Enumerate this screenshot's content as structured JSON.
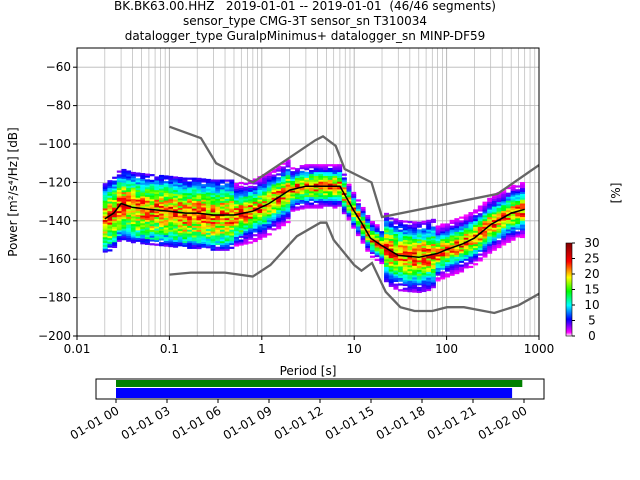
{
  "title_lines": [
    "BK.BK63.00.HHZ   2019-01-01 -- 2019-01-01  (46/46 segments)",
    "sensor_type CMG-3T sensor_sn T310034",
    "datalogger_type GuralpMinimus+ datalogger_sn MINP-DF59"
  ],
  "chart_data": [
    {
      "type": "heatmap",
      "subtype": "probabilistic-power-spectral-density",
      "xlabel": "Period [s]",
      "ylabel": "Power [m²/s⁴/Hz] [dB]",
      "xscale": "log",
      "xlim": [
        0.01,
        1000
      ],
      "ylim": [
        -200,
        -50
      ],
      "x_ticks": [
        0.01,
        0.1,
        1,
        10,
        100,
        1000
      ],
      "x_tick_labels": [
        "0.01",
        "0.1",
        "1",
        "10",
        "100",
        "1000"
      ],
      "y_ticks": [
        -200,
        -180,
        -160,
        -140,
        -120,
        -100,
        -80,
        -60
      ],
      "grid": true,
      "mode_curve": {
        "name": "mode",
        "x": [
          0.02,
          0.025,
          0.03,
          0.04,
          0.06,
          0.1,
          0.15,
          0.2,
          0.3,
          0.5,
          0.8,
          1.2,
          2,
          3,
          5,
          7,
          10,
          12,
          15,
          20,
          30,
          50,
          80,
          100,
          150,
          200,
          300,
          500,
          700
        ],
        "y": [
          -139,
          -136,
          -131,
          -133,
          -134,
          -135,
          -136,
          -136,
          -137,
          -137,
          -135,
          -131,
          -124,
          -122,
          -122,
          -122,
          -135,
          -141,
          -149,
          -153,
          -158,
          -159,
          -157,
          -155,
          -152,
          -149,
          -142,
          -136,
          -134
        ]
      },
      "noise_models": [
        {
          "name": "NHNM",
          "x": [
            0.1,
            0.22,
            0.32,
            0.8,
            3.8,
            4.6,
            6.3,
            7.9,
            15.4,
            20,
            354.8,
            1000
          ],
          "y": [
            -91,
            -97,
            -110,
            -120,
            -98,
            -96,
            -101,
            -113,
            -120,
            -138,
            -126,
            -111
          ]
        },
        {
          "name": "NLNM",
          "x": [
            0.1,
            0.17,
            0.4,
            0.8,
            1.24,
            2.4,
            4.3,
            5,
            6,
            10,
            12,
            15.6,
            21.9,
            31.6,
            45,
            70,
            101,
            154,
            328,
            600,
            1000
          ],
          "y": [
            -168,
            -167,
            -167,
            -169,
            -163,
            -148,
            -141,
            -141,
            -150,
            -163,
            -166,
            -162,
            -177,
            -185,
            -187,
            -187,
            -185,
            -185,
            -188,
            -184,
            -178
          ]
        }
      ],
      "colorbar": {
        "label": "[%]",
        "min": 0,
        "max": 30,
        "ticks": [
          0,
          5,
          10,
          15,
          20,
          25,
          30
        ]
      }
    },
    {
      "type": "timeline",
      "x_tick_labels": [
        "01-01 00",
        "01-01 03",
        "01-01 06",
        "01-01 09",
        "01-01 12",
        "01-01 15",
        "01-01 18",
        "01-01 21",
        "01-02 00"
      ],
      "bars": [
        {
          "name": "data",
          "color": "#008000",
          "start_hours": 0.0,
          "end_hours": 23.9
        },
        {
          "name": "psd_segments",
          "color": "#0000ff",
          "start_hours": 0.0,
          "end_hours": 23.3
        }
      ]
    }
  ]
}
